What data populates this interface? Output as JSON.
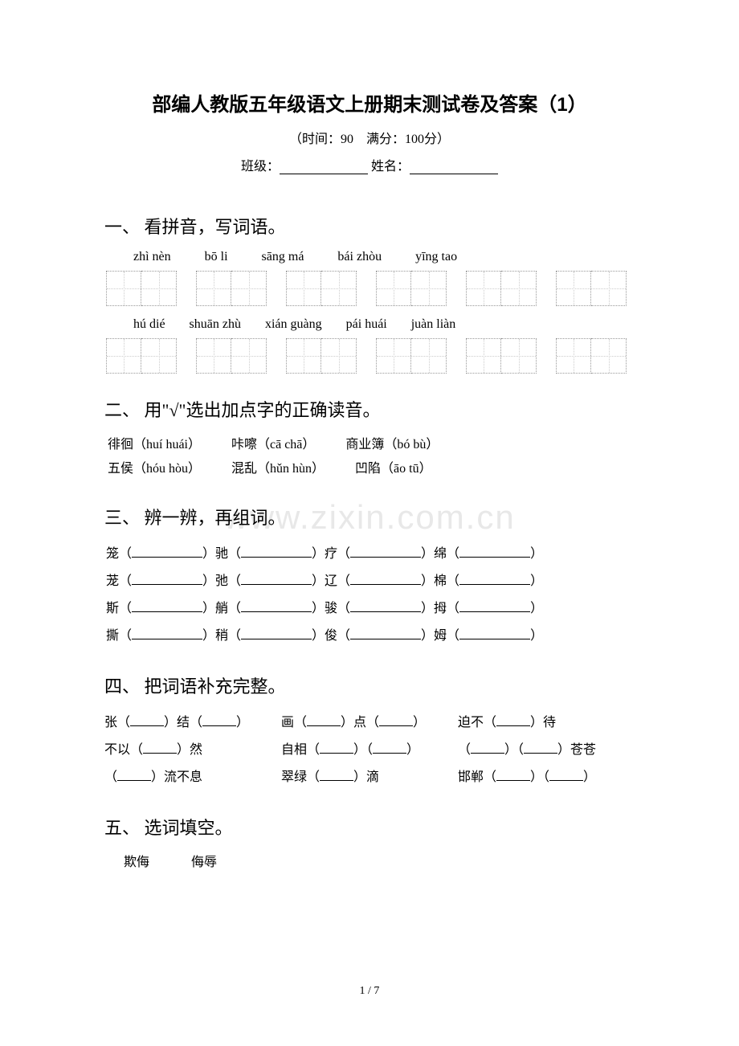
{
  "title": "部编人教版五年级语文上册期末测试卷及答案（1）",
  "subtitle": "（时间：90　满分：100分）",
  "classline": {
    "class_label": "班级：",
    "name_label": "姓名："
  },
  "watermark": "www.zixin.com.cn",
  "s1": {
    "heading": "一、 看拼音，写词语。",
    "row1": [
      "zhì nèn",
      "bō li",
      "sāng má",
      "bái zhòu",
      "yīng tao"
    ],
    "row2": [
      "hú dié",
      "shuān zhù",
      "xián guàng",
      "pái huái",
      "juàn liàn"
    ]
  },
  "s2": {
    "heading": "二、 用\"√\"选出加点字的正确读音。",
    "line1": {
      "a": "徘徊（huí huái）",
      "b": "咔嚓（cā chā）",
      "c": "商业簿（bó bù）"
    },
    "line2": {
      "a": "五侯（hóu hòu）",
      "b": "混乱（hǔn hùn）",
      "c": "凹陷（āo tū）"
    }
  },
  "s3": {
    "heading": "三、 辨一辨，再组词。",
    "rows": [
      [
        "笼（",
        "）驰（",
        "）疗（",
        "）绵（",
        "）"
      ],
      [
        "茏（",
        "）弛（",
        "）辽（",
        "）棉（",
        "）"
      ],
      [
        "斯（",
        "）艄（",
        "）骏（",
        "）拇（",
        "）"
      ],
      [
        "撕（",
        "）稍（",
        "）俊（",
        "）姆（",
        "）"
      ]
    ]
  },
  "s4": {
    "heading": "四、 把词语补充完整。",
    "r1": {
      "a": "张（",
      "a2": "）结（",
      "a3": "）",
      "b": "画（",
      "b2": "）点（",
      "b3": "）",
      "c": "迫不（",
      "c2": "）待"
    },
    "r2": {
      "a": "不以（",
      "a2": "）然",
      "b": "自相（",
      "b2": "）（",
      "b3": "）",
      "c": "（",
      "c2": "）（",
      "c3": "）苍苍"
    },
    "r3": {
      "a": "（",
      "a2": "）流不息",
      "b": "翠绿（",
      "b2": "）滴",
      "c": "邯郸（",
      "c2": "）（",
      "c3": "）"
    }
  },
  "s5": {
    "heading": "五、 选词填空。",
    "w1": "欺侮",
    "w2": "侮辱"
  },
  "pagenum": "1 / 7"
}
